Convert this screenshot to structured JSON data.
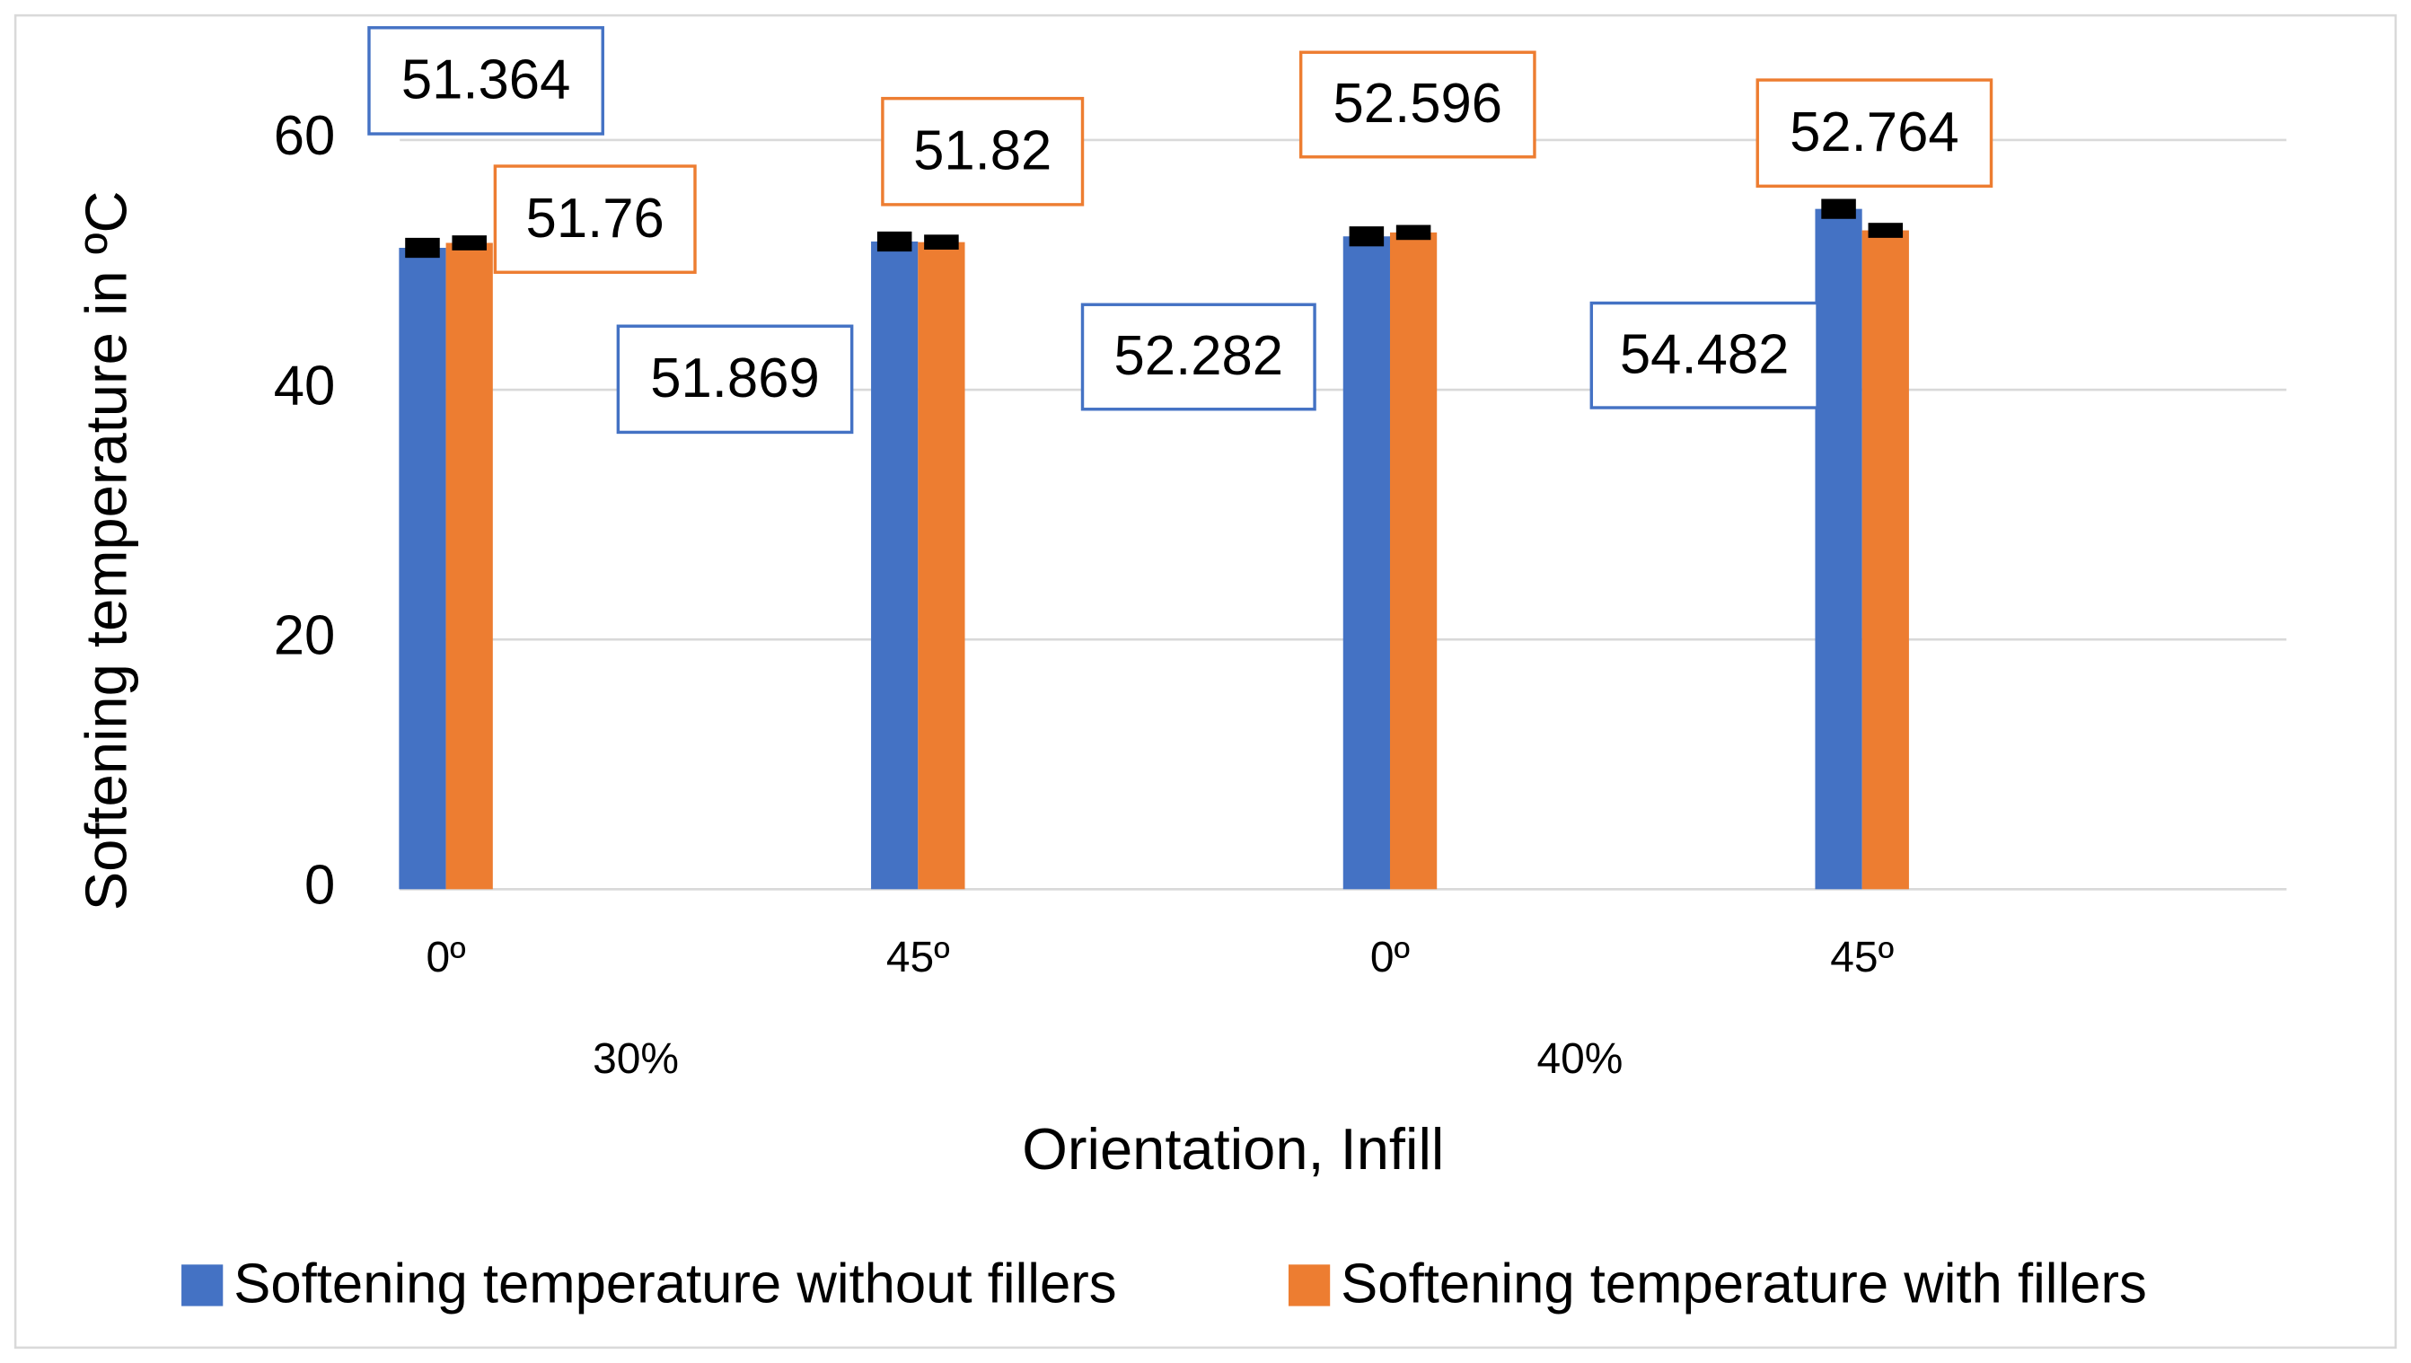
{
  "chart_data": {
    "type": "bar",
    "y_axis_title": "Softening temperature in ºC",
    "x_axis_title": "Orientation, Infill",
    "categories": [
      "0º",
      "45º",
      "0º",
      "45º"
    ],
    "group_labels": [
      "30%",
      "40%"
    ],
    "series": [
      {
        "name": "Softening temperature without fillers",
        "color": "#4472c4",
        "values": [
          51.364,
          51.869,
          52.282,
          54.482
        ],
        "errors": [
          0.8,
          0.8,
          0.8,
          0.8
        ]
      },
      {
        "name": "Softening temperature with fillers",
        "color": "#ed7d31",
        "values": [
          51.76,
          51.82,
          52.596,
          52.764
        ],
        "errors": [
          0.6,
          0.6,
          0.6,
          0.6
        ]
      }
    ],
    "ylim": [
      0,
      60
    ],
    "yticks": [
      0,
      20,
      40,
      60
    ],
    "grid": true,
    "legend": "bottom"
  }
}
